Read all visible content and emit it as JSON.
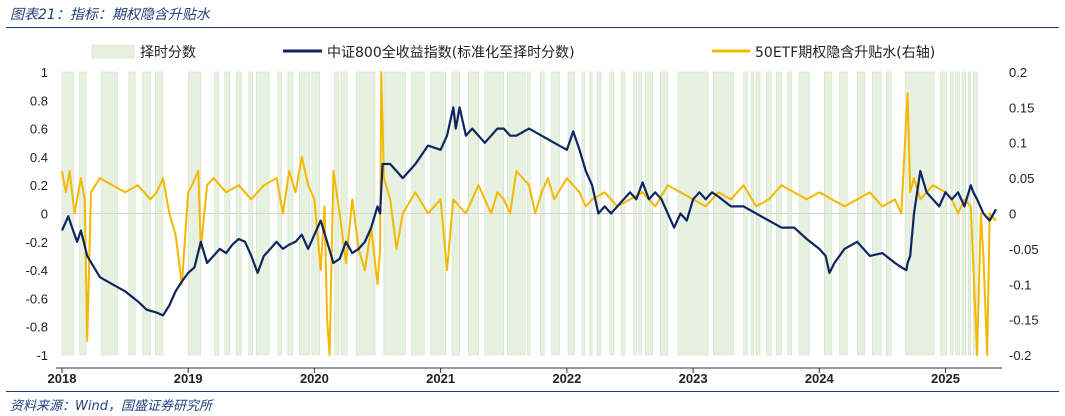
{
  "header": {
    "title": "图表21：指标：期权隐含升贴水"
  },
  "footer": {
    "source": "资料来源：Wind，国盛证券研究所"
  },
  "chart_data": {
    "type": "line",
    "title": "指标：期权隐含升贴水",
    "legend": [
      {
        "name": "择时分数",
        "kind": "area",
        "color": "#e6f1e0"
      },
      {
        "name": "中证800全收益指数(标准化至择时分数)",
        "kind": "line",
        "color": "#0d2561"
      },
      {
        "name": "50ETF期权隐含升贴水(右轴)",
        "kind": "line",
        "color": "#f5b800"
      }
    ],
    "x_range": [
      2018.0,
      2025.4
    ],
    "x_tick_labels": [
      "2018",
      "2019",
      "2020",
      "2021",
      "2022",
      "2023",
      "2024",
      "2025"
    ],
    "left_axis": {
      "ylim": [
        -1,
        1
      ],
      "ticks": [
        "1",
        "0.8",
        "0.6",
        "0.4",
        "0.2",
        "0",
        "-0.2",
        "-0.4",
        "-0.6",
        "-0.8",
        "-1"
      ]
    },
    "right_axis": {
      "ylim": [
        -0.2,
        0.2
      ],
      "ticks": [
        "0.2",
        "0.15",
        "0.1",
        "0.05",
        "0",
        "-0.05",
        "-0.1",
        "-0.15",
        "-0.2"
      ]
    },
    "timing_score_periods": [
      [
        2018.0,
        2018.09
      ],
      [
        2018.14,
        2018.19
      ],
      [
        2018.31,
        2018.44
      ],
      [
        2018.53,
        2018.58
      ],
      [
        2018.64,
        2018.7
      ],
      [
        2018.74,
        2018.8
      ],
      [
        2019.0,
        2019.1
      ],
      [
        2019.21,
        2019.24
      ],
      [
        2019.29,
        2019.33
      ],
      [
        2019.38,
        2019.42
      ],
      [
        2019.48,
        2019.51
      ],
      [
        2019.54,
        2019.64
      ],
      [
        2019.71,
        2019.74
      ],
      [
        2019.79,
        2019.83
      ],
      [
        2019.88,
        2019.96
      ],
      [
        2019.98,
        2020.04
      ],
      [
        2020.16,
        2020.19
      ],
      [
        2020.21,
        2020.26
      ],
      [
        2020.33,
        2020.48
      ],
      [
        2020.55,
        2020.72
      ],
      [
        2020.77,
        2020.87
      ],
      [
        2020.92,
        2021.04
      ],
      [
        2021.09,
        2021.15
      ],
      [
        2021.22,
        2021.3
      ],
      [
        2021.35,
        2021.5
      ],
      [
        2021.53,
        2021.67
      ],
      [
        2021.69,
        2021.71
      ],
      [
        2021.79,
        2021.82
      ],
      [
        2021.88,
        2021.94
      ],
      [
        2022.01,
        2022.06
      ],
      [
        2022.12,
        2022.14
      ],
      [
        2022.18,
        2022.2
      ],
      [
        2022.24,
        2022.27
      ],
      [
        2022.34,
        2022.37
      ],
      [
        2022.43,
        2022.46
      ],
      [
        2022.53,
        2022.55
      ],
      [
        2022.57,
        2022.59
      ],
      [
        2022.62,
        2022.68
      ],
      [
        2022.74,
        2022.8
      ],
      [
        2022.88,
        2023.12
      ],
      [
        2023.16,
        2023.32
      ],
      [
        2023.4,
        2023.43
      ],
      [
        2023.46,
        2023.48
      ],
      [
        2023.5,
        2023.53
      ],
      [
        2023.58,
        2023.62
      ],
      [
        2023.66,
        2023.7
      ],
      [
        2023.75,
        2023.78
      ],
      [
        2023.84,
        2023.92
      ],
      [
        2024.04,
        2024.1
      ],
      [
        2024.16,
        2024.22
      ],
      [
        2024.3,
        2024.36
      ],
      [
        2024.42,
        2024.49
      ],
      [
        2024.53,
        2024.57
      ],
      [
        2024.68,
        2024.91
      ],
      [
        2024.96,
        2025.01
      ],
      [
        2025.04,
        2025.06
      ],
      [
        2025.08,
        2025.11
      ],
      [
        2025.13,
        2025.16
      ],
      [
        2025.18,
        2025.2
      ],
      [
        2025.22,
        2025.25
      ]
    ],
    "series": [
      {
        "name": "中证800全收益指数(标准化至择时分数)",
        "axis": "left",
        "x": [
          2018.0,
          2018.05,
          2018.08,
          2018.12,
          2018.15,
          2018.2,
          2018.3,
          2018.4,
          2018.5,
          2018.6,
          2018.67,
          2018.75,
          2018.8,
          2018.85,
          2018.9,
          2018.95,
          2019.0,
          2019.05,
          2019.1,
          2019.15,
          2019.2,
          2019.25,
          2019.3,
          2019.35,
          2019.4,
          2019.45,
          2019.5,
          2019.55,
          2019.6,
          2019.65,
          2019.7,
          2019.75,
          2019.8,
          2019.85,
          2019.9,
          2019.95,
          2020.0,
          2020.05,
          2020.1,
          2020.15,
          2020.2,
          2020.25,
          2020.3,
          2020.35,
          2020.4,
          2020.45,
          2020.5,
          2020.52,
          2020.54,
          2020.6,
          2020.7,
          2020.8,
          2020.9,
          2021.0,
          2021.05,
          2021.1,
          2021.12,
          2021.15,
          2021.2,
          2021.25,
          2021.3,
          2021.35,
          2021.4,
          2021.45,
          2021.5,
          2021.55,
          2021.6,
          2021.7,
          2021.8,
          2021.9,
          2022.0,
          2022.05,
          2022.1,
          2022.15,
          2022.2,
          2022.25,
          2022.3,
          2022.35,
          2022.4,
          2022.45,
          2022.5,
          2022.55,
          2022.6,
          2022.65,
          2022.7,
          2022.75,
          2022.8,
          2022.85,
          2022.9,
          2022.95,
          2023.0,
          2023.05,
          2023.1,
          2023.15,
          2023.2,
          2023.3,
          2023.4,
          2023.5,
          2023.6,
          2023.7,
          2023.8,
          2023.9,
          2024.0,
          2024.05,
          2024.08,
          2024.12,
          2024.2,
          2024.3,
          2024.4,
          2024.5,
          2024.6,
          2024.65,
          2024.69,
          2024.7,
          2024.72,
          2024.75,
          2024.8,
          2024.85,
          2024.9,
          2024.95,
          2025.0,
          2025.05,
          2025.1,
          2025.15,
          2025.2,
          2025.22,
          2025.25,
          2025.3,
          2025.35,
          2025.4
        ],
        "values": [
          -0.12,
          -0.02,
          -0.1,
          -0.2,
          -0.12,
          -0.3,
          -0.45,
          -0.5,
          -0.55,
          -0.62,
          -0.68,
          -0.7,
          -0.72,
          -0.65,
          -0.55,
          -0.48,
          -0.42,
          -0.38,
          -0.2,
          -0.35,
          -0.3,
          -0.25,
          -0.28,
          -0.22,
          -0.18,
          -0.2,
          -0.3,
          -0.42,
          -0.3,
          -0.25,
          -0.2,
          -0.25,
          -0.22,
          -0.2,
          -0.15,
          -0.25,
          -0.15,
          -0.05,
          -0.2,
          -0.35,
          -0.32,
          -0.2,
          -0.28,
          -0.25,
          -0.2,
          -0.1,
          0.05,
          0.0,
          0.35,
          0.35,
          0.25,
          0.35,
          0.48,
          0.45,
          0.55,
          0.75,
          0.6,
          0.75,
          0.55,
          0.6,
          0.55,
          0.5,
          0.55,
          0.6,
          0.6,
          0.55,
          0.55,
          0.6,
          0.55,
          0.5,
          0.45,
          0.58,
          0.45,
          0.3,
          0.2,
          0.0,
          0.05,
          0.0,
          0.05,
          0.1,
          0.15,
          0.1,
          0.22,
          0.1,
          0.15,
          0.1,
          0.0,
          -0.1,
          0.0,
          -0.05,
          0.1,
          0.15,
          0.1,
          0.15,
          0.12,
          0.05,
          0.05,
          0.0,
          -0.05,
          -0.1,
          -0.1,
          -0.18,
          -0.25,
          -0.3,
          -0.42,
          -0.35,
          -0.25,
          -0.2,
          -0.3,
          -0.28,
          -0.35,
          -0.38,
          -0.4,
          -0.35,
          -0.3,
          0.0,
          0.3,
          0.15,
          0.1,
          0.05,
          0.15,
          0.1,
          0.15,
          0.05,
          0.2,
          0.15,
          0.1,
          0.0,
          -0.05,
          0.03
        ]
      },
      {
        "name": "50ETF期权隐含升贴水(右轴)",
        "axis": "right",
        "x": [
          2018.0,
          2018.03,
          2018.06,
          2018.1,
          2018.15,
          2018.18,
          2018.2,
          2018.23,
          2018.3,
          2018.4,
          2018.5,
          2018.6,
          2018.7,
          2018.75,
          2018.8,
          2018.85,
          2018.9,
          2018.95,
          2019.0,
          2019.03,
          2019.08,
          2019.1,
          2019.15,
          2019.2,
          2019.3,
          2019.4,
          2019.5,
          2019.6,
          2019.7,
          2019.75,
          2019.8,
          2019.85,
          2019.9,
          2019.95,
          2020.0,
          2020.05,
          2020.08,
          2020.1,
          2020.12,
          2020.15,
          2020.2,
          2020.25,
          2020.3,
          2020.35,
          2020.4,
          2020.45,
          2020.5,
          2020.52,
          2020.53,
          2020.55,
          2020.6,
          2020.65,
          2020.7,
          2020.8,
          2020.9,
          2021.0,
          2021.05,
          2021.1,
          2021.2,
          2021.3,
          2021.4,
          2021.45,
          2021.5,
          2021.55,
          2021.6,
          2021.7,
          2021.75,
          2021.8,
          2021.85,
          2021.9,
          2022.0,
          2022.1,
          2022.15,
          2022.2,
          2022.3,
          2022.4,
          2022.5,
          2022.6,
          2022.7,
          2022.8,
          2022.9,
          2023.0,
          2023.1,
          2023.2,
          2023.3,
          2023.4,
          2023.5,
          2023.6,
          2023.7,
          2023.8,
          2023.9,
          2024.0,
          2024.1,
          2024.2,
          2024.3,
          2024.4,
          2024.5,
          2024.6,
          2024.65,
          2024.7,
          2024.72,
          2024.75,
          2024.8,
          2024.9,
          2025.0,
          2025.05,
          2025.1,
          2025.15,
          2025.2,
          2025.25,
          2025.28,
          2025.3,
          2025.33,
          2025.35,
          2025.4
        ],
        "values": [
          0.06,
          0.03,
          0.06,
          0.0,
          0.05,
          0.02,
          -0.18,
          0.03,
          0.05,
          0.04,
          0.03,
          0.04,
          0.02,
          0.03,
          0.05,
          0.0,
          -0.03,
          -0.1,
          0.03,
          0.04,
          0.06,
          -0.05,
          0.04,
          0.05,
          0.03,
          0.04,
          0.02,
          0.04,
          0.05,
          0.0,
          0.06,
          0.03,
          0.08,
          0.04,
          0.02,
          -0.08,
          0.01,
          -0.15,
          -0.2,
          0.06,
          0.0,
          -0.07,
          0.02,
          -0.05,
          -0.08,
          -0.02,
          -0.1,
          -0.05,
          0.2,
          0.05,
          0.02,
          -0.05,
          0.0,
          0.03,
          0.0,
          0.02,
          -0.08,
          0.02,
          0.0,
          0.04,
          0.0,
          0.03,
          0.02,
          0.0,
          0.06,
          0.04,
          0.0,
          0.03,
          0.05,
          0.02,
          0.05,
          0.03,
          0.01,
          0.02,
          0.03,
          0.01,
          0.02,
          0.03,
          0.01,
          0.04,
          0.03,
          0.02,
          0.01,
          0.03,
          0.02,
          0.04,
          0.01,
          0.02,
          0.04,
          0.03,
          0.02,
          0.03,
          0.02,
          0.01,
          0.02,
          0.03,
          0.01,
          0.02,
          0.0,
          0.17,
          0.03,
          0.05,
          0.02,
          0.04,
          0.03,
          0.02,
          0.0,
          0.02,
          0.01,
          -0.2,
          0.0,
          -0.06,
          -0.2,
          0.0,
          -0.01
        ]
      }
    ]
  }
}
